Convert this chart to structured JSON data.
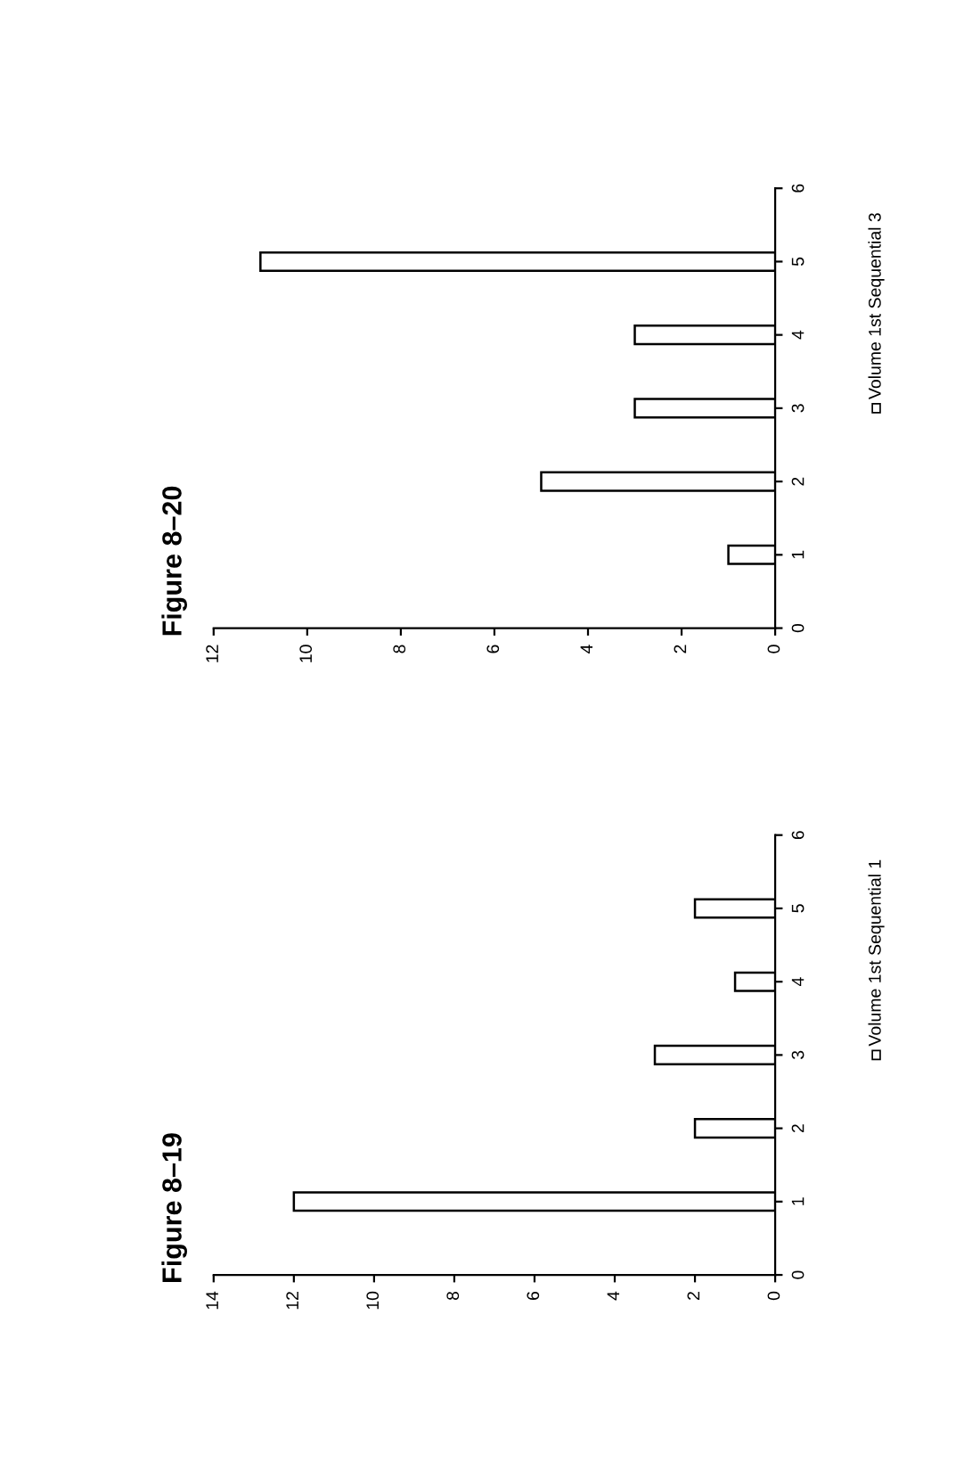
{
  "chart_data": [
    {
      "type": "bar",
      "orientation": "horizontal",
      "title": "Figure 8–19",
      "x": [
        1,
        2,
        3,
        4,
        5
      ],
      "ylim": [
        0,
        6
      ],
      "yticks": [
        0,
        1,
        2,
        3,
        4,
        5,
        6
      ],
      "xlim": [
        14,
        0
      ],
      "xticks": [
        0,
        2,
        4,
        6,
        8,
        10,
        12,
        14
      ],
      "legend": "right",
      "grid": false,
      "series": [
        {
          "name": "Volume 1st Sequential 1",
          "color": "#ffffff",
          "values": [
            12,
            2,
            3,
            1,
            2
          ]
        }
      ]
    },
    {
      "type": "bar",
      "orientation": "horizontal",
      "title": "Figure 8–20",
      "x": [
        1,
        2,
        3,
        4,
        5
      ],
      "ylim": [
        0,
        6
      ],
      "yticks": [
        0,
        1,
        2,
        3,
        4,
        5,
        6
      ],
      "xlim": [
        12,
        0
      ],
      "xticks": [
        0,
        2,
        4,
        6,
        8,
        10,
        12
      ],
      "legend": "right",
      "grid": false,
      "series": [
        {
          "name": "Volume 1st Sequential 3",
          "color": "#ffffff",
          "values": [
            1,
            5,
            3,
            3,
            11
          ]
        }
      ]
    }
  ]
}
